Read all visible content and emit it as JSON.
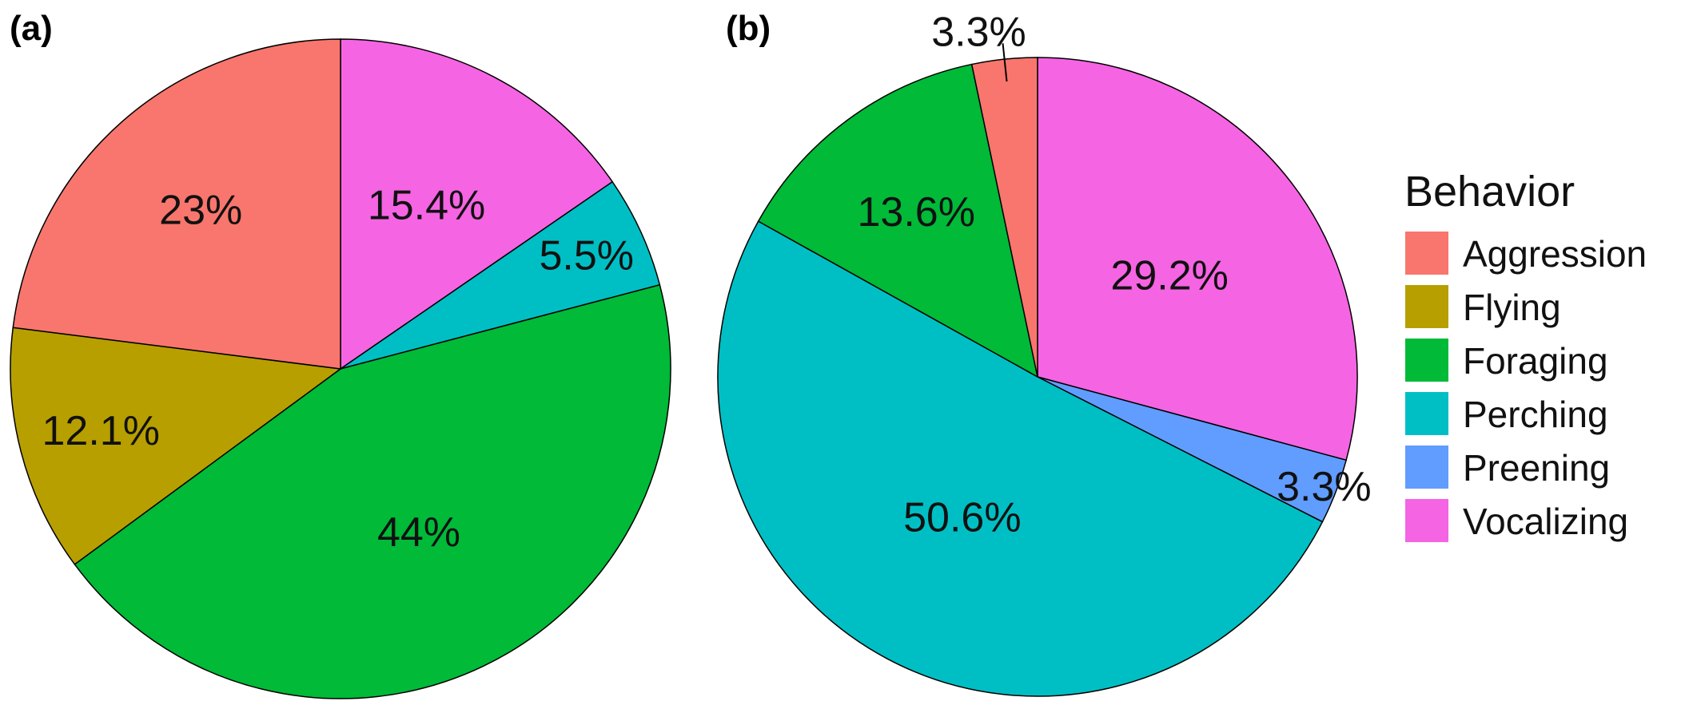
{
  "colors": {
    "Aggression": "#F8766D",
    "Flying": "#B79F00",
    "Foraging": "#00BA38",
    "Perching": "#00BFC4",
    "Preening": "#619CFF",
    "Vocalizing": "#F564E3"
  },
  "chart_data": [
    {
      "type": "pie",
      "panel_label": "(a)",
      "slices": [
        {
          "category": "Vocalizing",
          "value": 15.4,
          "label": "15.4%"
        },
        {
          "category": "Perching",
          "value": 5.5,
          "label": "5.5%"
        },
        {
          "category": "Foraging",
          "value": 44,
          "label": "44%"
        },
        {
          "category": "Flying",
          "value": 12.1,
          "label": "12.1%"
        },
        {
          "category": "Aggression",
          "value": 23,
          "label": "23%"
        }
      ]
    },
    {
      "type": "pie",
      "panel_label": "(b)",
      "slices": [
        {
          "category": "Vocalizing",
          "value": 29.2,
          "label": "29.2%"
        },
        {
          "category": "Preening",
          "value": 3.3,
          "label": "3.3%"
        },
        {
          "category": "Perching",
          "value": 50.6,
          "label": "50.6%"
        },
        {
          "category": "Foraging",
          "value": 13.6,
          "label": "13.6%"
        },
        {
          "category": "Aggression",
          "value": 3.3,
          "label": "3.3%"
        }
      ]
    }
  ],
  "legend": {
    "title": "Behavior",
    "placement": "right",
    "items": [
      "Aggression",
      "Flying",
      "Foraging",
      "Perching",
      "Preening",
      "Vocalizing"
    ]
  }
}
